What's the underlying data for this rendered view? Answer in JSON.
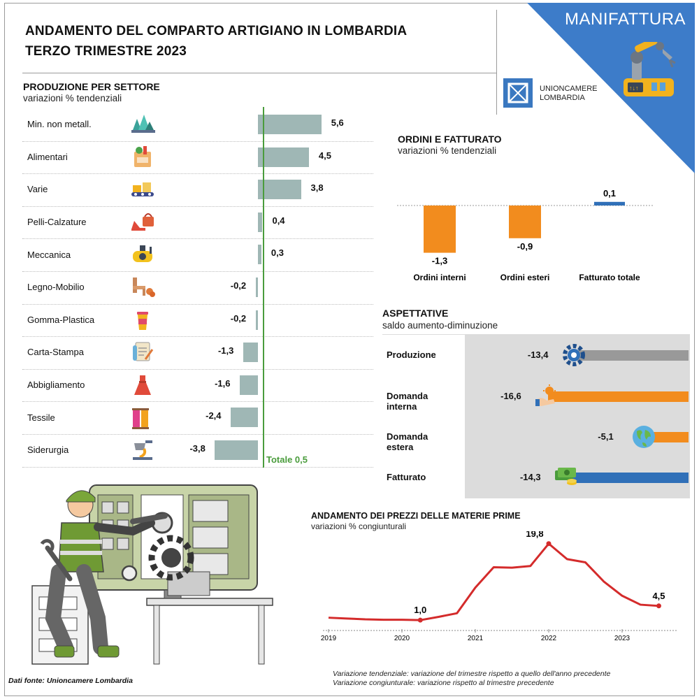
{
  "header": {
    "title_line1": "ANDAMENTO DEL COMPARTO ARTIGIANO IN LOMBARDIA",
    "title_line2": "TERZO TRIMESTRE 2023",
    "section_tag": "MANIFATTURA",
    "logo_line1": "UNIONCAMERE",
    "logo_line2": "LOMBARDIA"
  },
  "colors": {
    "teal_bar": "#9fb7b5",
    "orange": "#f28c1e",
    "blue": "#3070b8",
    "grey_bar": "#999999",
    "red_line": "#d42b2b",
    "green_total": "#4a9c3c",
    "corner_blue": "#3d7cc9"
  },
  "chart_data": [
    {
      "type": "bar",
      "title": "PRODUZIONE PER SETTORE",
      "subtitle": "variazioni % tendenziali",
      "categories": [
        "Min. non metall.",
        "Alimentari",
        "Varie",
        "Pelli-Calzature",
        "Meccanica",
        "Legno-Mobilio",
        "Gomma-Plastica",
        "Carta-Stampa",
        "Abbigliamento",
        "Tessile",
        "Siderurgia"
      ],
      "labels": [
        "5,6",
        "4,5",
        "3,8",
        "0,4",
        "0,3",
        "-0,2",
        "-0,2",
        "-1,3",
        "-1,6",
        "-2,4",
        "-3,8"
      ],
      "values": [
        5.6,
        4.5,
        3.8,
        0.4,
        0.3,
        -0.2,
        -0.2,
        -1.3,
        -1.6,
        -2.4,
        -3.8
      ],
      "icons": [
        "minerals-icon",
        "grocery-bag-icon",
        "conveyor-icon",
        "shoe-bag-icon",
        "compressor-icon",
        "furniture-icon",
        "cup-icon",
        "paper-icon",
        "dress-icon",
        "thread-spools-icon",
        "foundry-icon"
      ],
      "total_label": "Totale 0,5",
      "total_value": 0.5
    },
    {
      "type": "bar",
      "title": "ORDINI E FATTURATO",
      "subtitle": "variazioni % tendenziali",
      "categories": [
        "Ordini interni",
        "Ordini esteri",
        "Fatturato totale"
      ],
      "labels": [
        "-1,3",
        "-0,9",
        "0,1"
      ],
      "values": [
        -1.3,
        -0.9,
        0.1
      ],
      "colors": [
        "#f28c1e",
        "#f28c1e",
        "#3070b8"
      ]
    },
    {
      "type": "bar",
      "title": "ASPETTATIVE",
      "subtitle": "saldo aumento-diminuzione",
      "categories": [
        "Produzione",
        "Domanda interna",
        "Domanda estera",
        "Fatturato"
      ],
      "labels": [
        "-13,4",
        "-16,6",
        "-5,1",
        "-14,3"
      ],
      "values": [
        -13.4,
        -16.6,
        -5.1,
        -14.3
      ],
      "colors": [
        "#999999",
        "#f28c1e",
        "#f28c1e",
        "#3070b8"
      ],
      "icons": [
        "gear-icon",
        "hand-sun-icon",
        "globe-icon",
        "money-icon"
      ]
    },
    {
      "type": "line",
      "title": "ANDAMENTO DEI PREZZI DELLE MATERIE PRIME",
      "subtitle": "variazioni % congiunturali",
      "x_ticks": [
        "2019",
        "2020",
        "2021",
        "2022",
        "2023"
      ],
      "x": [
        2019.0,
        2019.25,
        2019.5,
        2019.75,
        2020.0,
        2020.25,
        2020.5,
        2020.75,
        2021.0,
        2021.25,
        2021.5,
        2021.75,
        2022.0,
        2022.25,
        2022.5,
        2022.75,
        2023.0,
        2023.25,
        2023.5
      ],
      "y": [
        1.6,
        1.4,
        1.2,
        1.1,
        1.1,
        1.0,
        1.8,
        2.7,
        9.0,
        14.0,
        13.9,
        14.3,
        19.8,
        16.0,
        15.2,
        10.5,
        7.0,
        4.8,
        4.5
      ],
      "annotations": [
        {
          "x": 2020.25,
          "y": 1.0,
          "label": "1,0"
        },
        {
          "x": 2022.0,
          "y": 19.8,
          "label": "19,8"
        },
        {
          "x": 2023.5,
          "y": 4.5,
          "label": "4,5"
        }
      ],
      "ylim": [
        0,
        22
      ]
    }
  ],
  "footer": {
    "source": "Dati fonte: Unioncamere Lombardia",
    "note1": "Variazione tendenziale: variazione del trimestre rispetto a quello dell'anno precedente",
    "note2": "Variazione congiunturale: variazione rispetto al trimestre precedente"
  }
}
